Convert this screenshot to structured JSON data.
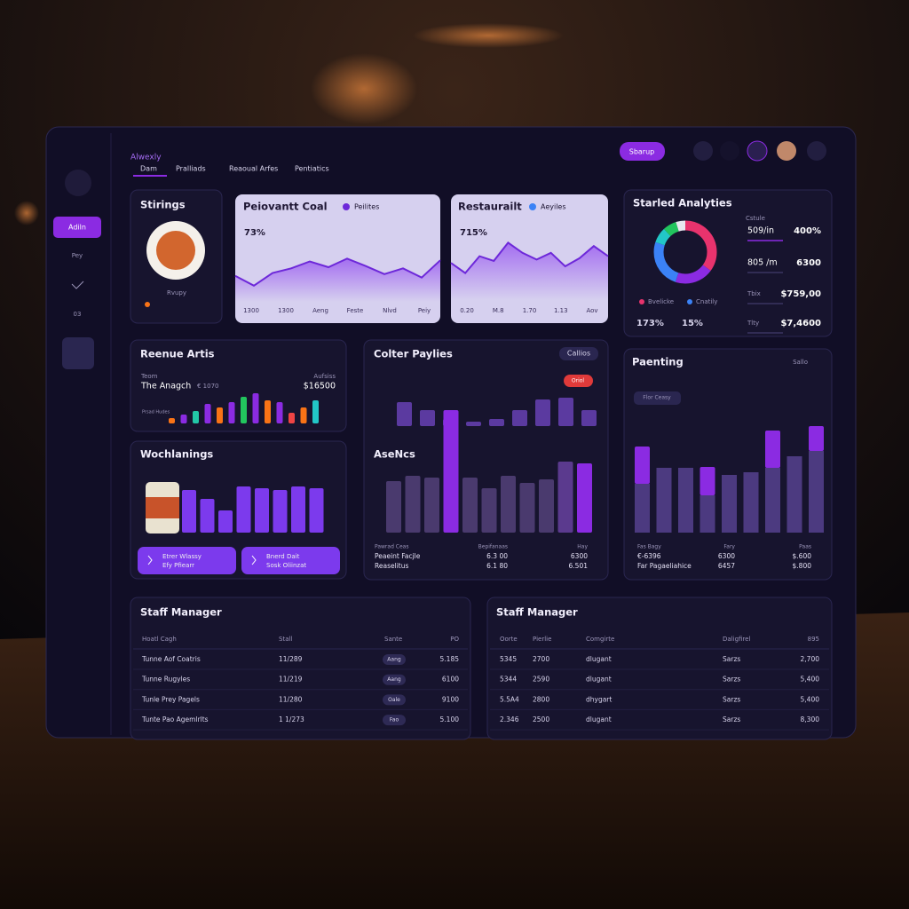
{
  "header": {
    "title": "Alwexly",
    "tabs": [
      "Dam",
      "Pralliads",
      "Reaoual Arfes",
      "Pentiatics"
    ],
    "button": "Sbarup"
  },
  "sidebar": {
    "items": [
      "Adiln",
      "Pey",
      "03"
    ]
  },
  "stirings": {
    "title": "Stirings",
    "caption": "Rvupy"
  },
  "coal": {
    "title": "Peiovantt Coal",
    "legend": "Peilites",
    "value": "73%",
    "x_labels": [
      "1300",
      "1300",
      "Aeng",
      "Feste",
      "Nlvd",
      "Peiy"
    ],
    "values": [
      45,
      28,
      50,
      58,
      70,
      60,
      75,
      62,
      48,
      58,
      42,
      72
    ]
  },
  "restaurant": {
    "title": "Restaurailt",
    "legend": "Aeyiles",
    "value": "715%",
    "x_labels": [
      "0.20",
      "M.8",
      "1.70",
      "1.13",
      "Aov"
    ],
    "values": [
      55,
      40,
      65,
      58,
      85,
      70,
      60,
      70,
      50,
      62,
      80,
      65
    ]
  },
  "analytics": {
    "title": "Starled Analyties",
    "subtitle": "Cstule",
    "donut": {
      "values": [
        35,
        20,
        25,
        8,
        7,
        5
      ],
      "colors": [
        "#e8336d",
        "#8b2be2",
        "#3b82f6",
        "#22c7c7",
        "#22c55e",
        "#e8e8f0"
      ]
    },
    "legend": [
      "Bvelicke",
      "Cnatily"
    ],
    "stats": [
      "173%",
      "15%"
    ],
    "rows": [
      [
        "509/in",
        "400%"
      ],
      [
        "805 /m",
        "6300"
      ],
      [
        "Tbix",
        "$759,00"
      ],
      [
        "Tlty",
        "$7,4600"
      ]
    ]
  },
  "revenue": {
    "title": "Reenue Artis",
    "small_left": "Teom",
    "small_right": "Aufsiss",
    "label": "The Anagch",
    "amount": "€ 1070",
    "total": "$16500",
    "axis_note": "Prsad Hudes",
    "values": [
      6,
      10,
      14,
      22,
      18,
      24,
      30,
      34,
      26,
      24,
      12,
      18,
      26
    ],
    "colors": [
      "#f97316",
      "#8b2be2",
      "#22c7a7",
      "#8b2be2",
      "#f97316",
      "#8b2be2",
      "#22c55e",
      "#8b2be2",
      "#f97316",
      "#8b2be2",
      "#ef4444",
      "#f97316",
      "#22c7c7"
    ]
  },
  "colter": {
    "title": "Colter Paylies",
    "chip": "Callios",
    "alert": "Oriol",
    "subtitle": "AseNcs",
    "top_values": [
      27,
      18,
      8,
      5,
      8,
      18,
      30,
      32,
      18
    ],
    "values": [
      58,
      64,
      62,
      138,
      62,
      50,
      64,
      56,
      60,
      80,
      78
    ],
    "colors": [
      "#4a3a6e",
      "#4a3a6e",
      "#4a3a6e",
      "#8b2be2",
      "#4a3a6e",
      "#4a3a6e",
      "#4a3a6e",
      "#4a3a6e",
      "#4a3a6e",
      "#5b3a8e",
      "#8b2be2"
    ],
    "footer": [
      [
        "Pawrad Ceas",
        "Bepifanaas",
        "Hay"
      ],
      [
        "Peaeint Facjle",
        "6.3 00",
        "6300"
      ],
      [
        "Reaselitus",
        "6.1 80",
        "6.501"
      ]
    ]
  },
  "wochlanings": {
    "title": "Wochlanings",
    "values": [
      48,
      38,
      25,
      52,
      50,
      48,
      52,
      50
    ],
    "buttons": [
      [
        "Etrer Wlassy",
        "Efy Pfiearr"
      ],
      [
        "Bnerd Dait",
        "Sosk Oliinzat"
      ]
    ]
  },
  "paenting": {
    "title": "Paenting",
    "filter": "Sallo",
    "chip": "Flor Ceasy",
    "base": [
      55,
      73,
      73,
      42,
      65,
      68,
      73,
      86,
      92
    ],
    "top": [
      42,
      0,
      0,
      32,
      0,
      0,
      42,
      0,
      28
    ],
    "footer": [
      [
        "Fas Bagy",
        "Fary",
        "Paas"
      ],
      [
        "€-6396",
        "6300",
        "$.600"
      ],
      [
        "Far Pagaeliahice",
        "6457",
        "$.800"
      ]
    ]
  },
  "staff_left": {
    "title": "Staff Manager",
    "columns": [
      "Hoatl Cagh",
      "Stall",
      "Sante",
      "PO"
    ],
    "rows": [
      [
        "Tunne Aof Coatris",
        "11/289",
        "Aang",
        "5.185"
      ],
      [
        "Tunne Rugyles",
        "11/219",
        "Aang",
        "6100"
      ],
      [
        "Tunle Prey Pagels",
        "11/280",
        "Oale",
        "9100"
      ],
      [
        "Tunte Pao Agemlrlts",
        "1 1/273",
        "Fao",
        "5.100"
      ]
    ]
  },
  "staff_right": {
    "title": "Staff Manager",
    "columns": [
      "Oorte",
      "Pierlie",
      "Comgirte",
      "Daligfirel",
      "895"
    ],
    "rows": [
      [
        "5345",
        "2700",
        "dlugant",
        "Sarzs",
        "2,700"
      ],
      [
        "5344",
        "2590",
        "dlugant",
        "Sarzs",
        "5,400"
      ],
      [
        "5.5A4",
        "2800",
        "dhygart",
        "Sarzs",
        "5,400"
      ],
      [
        "2.346",
        "2500",
        "dlugant",
        "Sarzs",
        "8,300"
      ]
    ]
  }
}
